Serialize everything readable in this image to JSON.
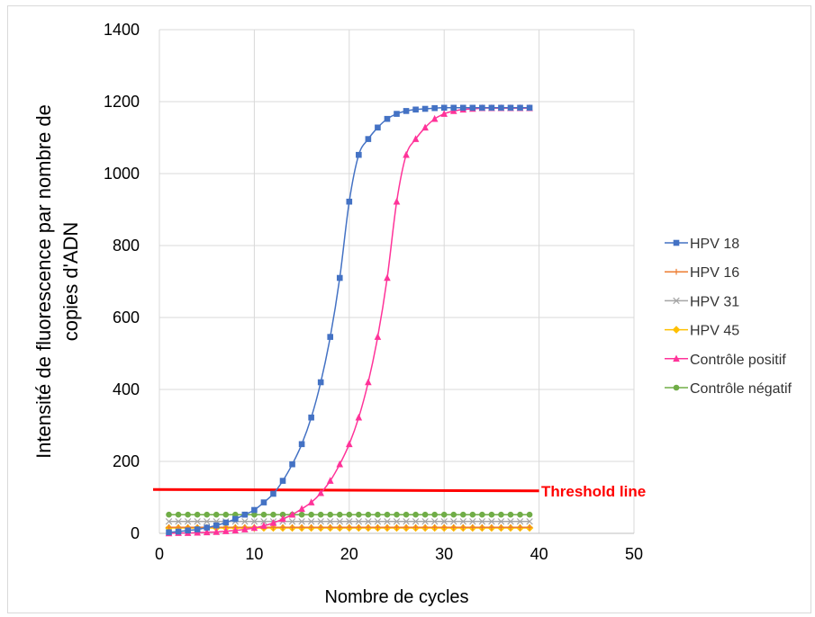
{
  "chart_data": {
    "type": "line",
    "xlabel": "Nombre de cycles",
    "ylabel_lines": [
      "Intensité de fluorescence par nombre de",
      "copies d'ADN"
    ],
    "xlim": [
      0,
      50
    ],
    "ylim": [
      0,
      1400
    ],
    "xticks": [
      0,
      10,
      20,
      30,
      40,
      50
    ],
    "yticks": [
      0,
      200,
      400,
      600,
      800,
      1000,
      1200,
      1400
    ],
    "grid": "vertical and horizontal major gridlines",
    "legend_position": "right",
    "x": [
      1,
      2,
      3,
      4,
      5,
      6,
      7,
      8,
      9,
      10,
      11,
      12,
      13,
      14,
      15,
      16,
      17,
      18,
      19,
      20,
      21,
      22,
      23,
      24,
      25,
      26,
      27,
      28,
      29,
      30,
      31,
      32,
      33,
      34,
      35,
      36,
      37,
      38,
      39
    ],
    "series": [
      {
        "name": "HPV 18",
        "color": "#4472c4",
        "marker": "square",
        "values": [
          3,
          5,
          8,
          11,
          16,
          22,
          30,
          40,
          52,
          65,
          86,
          110,
          146,
          192,
          248,
          322,
          420,
          546,
          710,
          922,
          1052,
          1096,
          1128,
          1152,
          1166,
          1174,
          1178,
          1180,
          1182,
          1183,
          1183,
          1183,
          1183,
          1183,
          1183,
          1183,
          1183,
          1183,
          1183
        ]
      },
      {
        "name": "HPV 16",
        "color": "#ed7d31",
        "marker": "plus",
        "values": [
          17,
          17,
          17,
          17,
          17,
          17,
          17,
          17,
          17,
          17,
          17,
          17,
          17,
          17,
          17,
          17,
          17,
          17,
          17,
          17,
          17,
          17,
          17,
          17,
          17,
          17,
          17,
          17,
          17,
          17,
          17,
          17,
          17,
          17,
          17,
          17,
          17,
          17,
          17
        ]
      },
      {
        "name": "HPV 31",
        "color": "#a5a5a5",
        "marker": "x",
        "values": [
          33,
          33,
          33,
          33,
          33,
          33,
          33,
          33,
          33,
          33,
          33,
          33,
          33,
          33,
          33,
          33,
          33,
          33,
          33,
          33,
          33,
          33,
          33,
          33,
          33,
          33,
          33,
          33,
          33,
          33,
          33,
          33,
          33,
          33,
          33,
          33,
          33,
          33,
          33
        ]
      },
      {
        "name": "HPV 45",
        "color": "#ffc000",
        "marker": "diamond",
        "values": [
          15,
          15,
          15,
          15,
          15,
          15,
          15,
          15,
          15,
          15,
          15,
          15,
          15,
          15,
          15,
          15,
          15,
          15,
          15,
          15,
          15,
          15,
          15,
          15,
          15,
          15,
          15,
          15,
          15,
          15,
          15,
          15,
          15,
          15,
          15,
          15,
          15,
          15,
          15
        ]
      },
      {
        "name": "Contrôle positif",
        "color": "#ff3399",
        "marker": "triangle",
        "values": [
          0,
          1,
          1,
          2,
          3,
          4,
          6,
          8,
          11,
          15,
          21,
          29,
          40,
          52,
          68,
          86,
          112,
          146,
          192,
          248,
          322,
          420,
          546,
          710,
          922,
          1052,
          1096,
          1128,
          1152,
          1166,
          1174,
          1178,
          1180,
          1182,
          1182,
          1182,
          1182,
          1182,
          1182
        ]
      },
      {
        "name": "Contrôle négatif",
        "color": "#70ad47",
        "marker": "circle",
        "values": [
          52,
          52,
          52,
          52,
          52,
          52,
          52,
          52,
          52,
          52,
          52,
          52,
          52,
          52,
          52,
          52,
          52,
          52,
          52,
          52,
          52,
          52,
          52,
          52,
          52,
          52,
          52,
          52,
          52,
          52,
          52,
          52,
          52,
          52,
          52,
          52,
          52,
          52,
          52
        ]
      }
    ],
    "threshold": {
      "label": "Threshold line",
      "color": "#ff0000",
      "x": [
        0,
        40
      ],
      "y": [
        122,
        118
      ]
    }
  }
}
